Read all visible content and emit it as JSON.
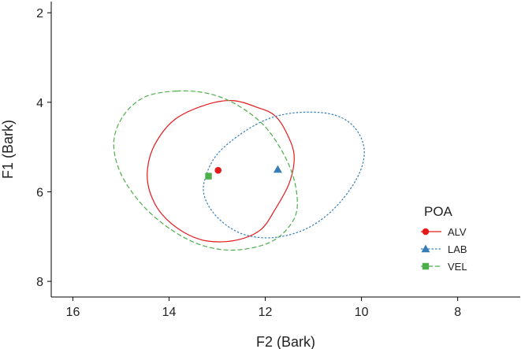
{
  "chart_data": {
    "type": "scatter",
    "xlabel": "F2 (Bark)",
    "ylabel": "F1 (Bark)",
    "x_reversed": true,
    "y_reversed": true,
    "xlim": [
      16.45,
      6.7
    ],
    "ylim": [
      1.75,
      8.35
    ],
    "x_ticks": [
      16,
      14,
      12,
      10,
      8
    ],
    "y_ticks": [
      2,
      4,
      6,
      8
    ],
    "x_tick_labels": [
      "16",
      "14",
      "12",
      "10",
      "8"
    ],
    "y_tick_labels": [
      "2",
      "4",
      "6",
      "8"
    ],
    "grid": false,
    "legend": {
      "title": "POA",
      "position": "right",
      "entries": [
        {
          "label": "ALV",
          "color": "#E41A1C",
          "marker": "circle",
          "linestyle": "solid"
        },
        {
          "label": "LAB",
          "color": "#377EB8",
          "marker": "triangle",
          "linestyle": "dotted"
        },
        {
          "label": "VEL",
          "color": "#4DAF4A",
          "marker": "square",
          "linestyle": "dashed"
        }
      ]
    },
    "series": [
      {
        "name": "ALV",
        "color": "#E41A1C",
        "marker": "circle",
        "mean": {
          "x": 12.98,
          "y": 5.52
        },
        "ellipse": [
          [
            12.15,
            4.12
          ],
          [
            11.8,
            4.3
          ],
          [
            11.55,
            4.7
          ],
          [
            11.4,
            5.2
          ],
          [
            11.5,
            5.8
          ],
          [
            11.8,
            6.4
          ],
          [
            12.1,
            6.85
          ],
          [
            12.6,
            7.08
          ],
          [
            13.2,
            7.1
          ],
          [
            13.7,
            6.9
          ],
          [
            14.15,
            6.5
          ],
          [
            14.4,
            6.0
          ],
          [
            14.45,
            5.5
          ],
          [
            14.3,
            4.95
          ],
          [
            13.9,
            4.4
          ],
          [
            13.3,
            4.08
          ],
          [
            12.7,
            3.96
          ],
          [
            12.15,
            4.12
          ]
        ]
      },
      {
        "name": "LAB",
        "color": "#377EB8",
        "marker": "triangle",
        "mean": {
          "x": 11.74,
          "y": 5.5
        },
        "ellipse": [
          [
            12.2,
            4.5
          ],
          [
            11.5,
            4.25
          ],
          [
            10.7,
            4.25
          ],
          [
            10.2,
            4.5
          ],
          [
            9.95,
            5.0
          ],
          [
            10.05,
            5.6
          ],
          [
            10.5,
            6.3
          ],
          [
            11.1,
            6.8
          ],
          [
            11.8,
            7.02
          ],
          [
            12.45,
            6.95
          ],
          [
            12.95,
            6.62
          ],
          [
            13.25,
            6.15
          ],
          [
            13.25,
            5.7
          ],
          [
            12.95,
            5.1
          ],
          [
            12.2,
            4.5
          ]
        ]
      },
      {
        "name": "VEL",
        "color": "#4DAF4A",
        "marker": "square",
        "mean": {
          "x": 13.18,
          "y": 5.65
        },
        "ellipse": [
          [
            13.85,
            3.75
          ],
          [
            13.2,
            3.8
          ],
          [
            12.6,
            4.05
          ],
          [
            12.0,
            4.55
          ],
          [
            11.55,
            5.3
          ],
          [
            11.35,
            6.0
          ],
          [
            11.4,
            6.6
          ],
          [
            11.85,
            7.1
          ],
          [
            12.6,
            7.3
          ],
          [
            13.3,
            7.2
          ],
          [
            13.95,
            6.85
          ],
          [
            14.55,
            6.3
          ],
          [
            15.0,
            5.6
          ],
          [
            15.15,
            4.9
          ],
          [
            14.95,
            4.3
          ],
          [
            14.5,
            3.88
          ],
          [
            13.85,
            3.75
          ]
        ]
      }
    ]
  }
}
